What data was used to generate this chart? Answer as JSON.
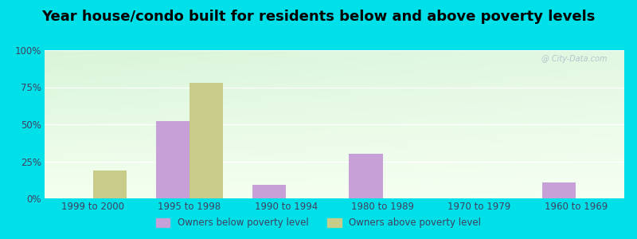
{
  "title": "Year house/condo built for residents below and above poverty levels",
  "categories": [
    "1999 to 2000",
    "1995 to 1998",
    "1990 to 1994",
    "1980 to 1989",
    "1970 to 1979",
    "1960 to 1969"
  ],
  "below_poverty": [
    0,
    52,
    9,
    30,
    0,
    11
  ],
  "above_poverty": [
    19,
    78,
    0,
    0,
    0,
    0
  ],
  "below_color": "#c8a0d8",
  "above_color": "#c8cc88",
  "yticks": [
    0,
    25,
    50,
    75,
    100
  ],
  "ytick_labels": [
    "0%",
    "25%",
    "50%",
    "75%",
    "100%"
  ],
  "ylim": [
    0,
    100
  ],
  "background_color": "#00e0e8",
  "legend_below_label": "Owners below poverty level",
  "legend_above_label": "Owners above poverty level",
  "bar_width": 0.35,
  "title_fontsize": 13,
  "tick_fontsize": 8.5,
  "watermark": "@ City-Data.com"
}
